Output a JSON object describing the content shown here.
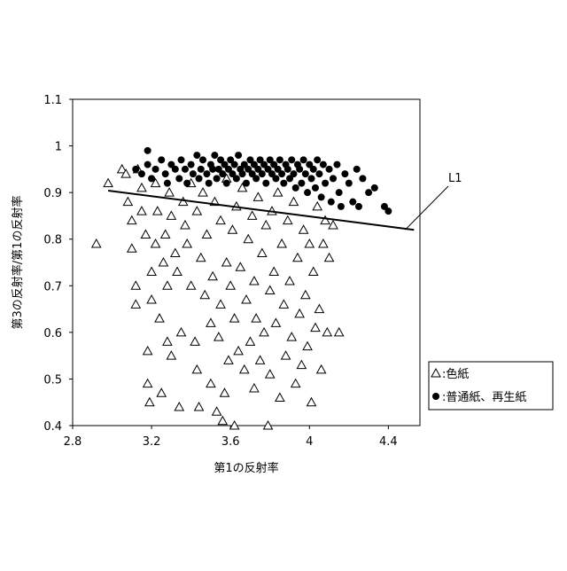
{
  "chart_data": {
    "type": "scatter",
    "xlabel": "第1の反射率",
    "ylabel": "第3の反射率/第1の反射率",
    "xlim": [
      2.8,
      4.56
    ],
    "xticks": [
      2.8,
      3.2,
      3.6,
      4,
      4.4
    ],
    "ylim": [
      0.4,
      1.1
    ],
    "yticks": [
      0.4,
      0.5,
      0.6,
      0.7,
      0.8,
      0.9,
      1,
      1.1
    ],
    "legend": "right",
    "series": [
      {
        "name": ":色紙",
        "marker": "triangle",
        "color": "#000000",
        "x": [
          2.92,
          2.98,
          3.05,
          3.07,
          3.08,
          3.1,
          3.1,
          3.12,
          3.12,
          3.13,
          3.15,
          3.15,
          3.17,
          3.18,
          3.18,
          3.19,
          3.2,
          3.2,
          3.22,
          3.22,
          3.23,
          3.24,
          3.25,
          3.26,
          3.27,
          3.28,
          3.28,
          3.29,
          3.3,
          3.3,
          3.32,
          3.33,
          3.34,
          3.35,
          3.36,
          3.37,
          3.38,
          3.4,
          3.4,
          3.42,
          3.43,
          3.43,
          3.44,
          3.45,
          3.46,
          3.47,
          3.48,
          3.5,
          3.5,
          3.51,
          3.52,
          3.53,
          3.54,
          3.55,
          3.55,
          3.56,
          3.57,
          3.58,
          3.58,
          3.59,
          3.6,
          3.61,
          3.62,
          3.62,
          3.63,
          3.64,
          3.65,
          3.66,
          3.67,
          3.68,
          3.69,
          3.7,
          3.71,
          3.72,
          3.72,
          3.73,
          3.74,
          3.75,
          3.76,
          3.77,
          3.78,
          3.79,
          3.8,
          3.8,
          3.81,
          3.82,
          3.83,
          3.84,
          3.85,
          3.86,
          3.87,
          3.88,
          3.89,
          3.9,
          3.91,
          3.92,
          3.93,
          3.94,
          3.95,
          3.96,
          3.97,
          3.98,
          3.99,
          4.0,
          4.01,
          4.02,
          4.03,
          4.04,
          4.05,
          4.06,
          4.07,
          4.08,
          4.09,
          4.1,
          4.12,
          4.15
        ],
        "values": [
          0.79,
          0.92,
          0.95,
          0.94,
          0.88,
          0.84,
          0.78,
          0.7,
          0.66,
          0.95,
          0.91,
          0.86,
          0.81,
          0.56,
          0.49,
          0.45,
          0.67,
          0.73,
          0.92,
          0.79,
          0.86,
          0.63,
          0.47,
          0.75,
          0.81,
          0.7,
          0.58,
          0.9,
          0.55,
          0.85,
          0.77,
          0.73,
          0.44,
          0.6,
          0.88,
          0.83,
          0.79,
          0.7,
          0.92,
          0.58,
          0.52,
          0.86,
          0.44,
          0.76,
          0.9,
          0.68,
          0.81,
          0.62,
          0.49,
          0.72,
          0.88,
          0.43,
          0.59,
          0.84,
          0.66,
          0.41,
          0.47,
          0.75,
          0.93,
          0.54,
          0.7,
          0.82,
          0.63,
          0.4,
          0.87,
          0.56,
          0.74,
          0.91,
          0.52,
          0.67,
          0.8,
          0.58,
          0.85,
          0.48,
          0.71,
          0.63,
          0.89,
          0.54,
          0.77,
          0.6,
          0.83,
          0.4,
          0.69,
          0.51,
          0.86,
          0.73,
          0.62,
          0.9,
          0.46,
          0.79,
          0.66,
          0.55,
          0.84,
          0.71,
          0.59,
          0.88,
          0.49,
          0.76,
          0.64,
          0.53,
          0.82,
          0.68,
          0.57,
          0.79,
          0.45,
          0.73,
          0.61,
          0.87,
          0.65,
          0.52,
          0.79,
          0.84,
          0.6,
          0.76,
          0.83,
          0.6
        ]
      },
      {
        "name": ":普通紙、再生紙",
        "marker": "circle",
        "color": "#000000",
        "x": [
          3.12,
          3.15,
          3.18,
          3.18,
          3.2,
          3.22,
          3.25,
          3.27,
          3.28,
          3.3,
          3.32,
          3.34,
          3.35,
          3.37,
          3.38,
          3.4,
          3.41,
          3.43,
          3.44,
          3.45,
          3.46,
          3.48,
          3.49,
          3.5,
          3.51,
          3.52,
          3.53,
          3.54,
          3.55,
          3.56,
          3.57,
          3.58,
          3.59,
          3.6,
          3.61,
          3.62,
          3.63,
          3.64,
          3.65,
          3.66,
          3.67,
          3.68,
          3.69,
          3.7,
          3.71,
          3.72,
          3.73,
          3.74,
          3.75,
          3.76,
          3.77,
          3.78,
          3.79,
          3.8,
          3.81,
          3.82,
          3.83,
          3.84,
          3.85,
          3.86,
          3.87,
          3.88,
          3.89,
          3.9,
          3.91,
          3.92,
          3.93,
          3.94,
          3.95,
          3.96,
          3.97,
          3.98,
          3.99,
          4.0,
          4.01,
          4.02,
          4.03,
          4.04,
          4.05,
          4.06,
          4.07,
          4.08,
          4.1,
          4.11,
          4.12,
          4.14,
          4.15,
          4.16,
          4.18,
          4.2,
          4.22,
          4.24,
          4.25,
          4.27,
          4.3,
          4.33,
          4.38,
          4.4
        ],
        "values": [
          0.95,
          0.94,
          0.96,
          0.99,
          0.93,
          0.95,
          0.97,
          0.94,
          0.92,
          0.96,
          0.95,
          0.93,
          0.97,
          0.95,
          0.92,
          0.96,
          0.94,
          0.98,
          0.93,
          0.95,
          0.97,
          0.94,
          0.92,
          0.96,
          0.95,
          0.98,
          0.93,
          0.95,
          0.97,
          0.94,
          0.96,
          0.92,
          0.95,
          0.97,
          0.94,
          0.96,
          0.93,
          0.98,
          0.95,
          0.94,
          0.96,
          0.92,
          0.95,
          0.97,
          0.94,
          0.96,
          0.93,
          0.95,
          0.97,
          0.94,
          0.96,
          0.92,
          0.95,
          0.97,
          0.94,
          0.96,
          0.93,
          0.95,
          0.97,
          0.94,
          0.92,
          0.96,
          0.95,
          0.93,
          0.97,
          0.94,
          0.91,
          0.96,
          0.95,
          0.92,
          0.97,
          0.94,
          0.9,
          0.96,
          0.93,
          0.95,
          0.91,
          0.97,
          0.94,
          0.89,
          0.96,
          0.92,
          0.95,
          0.88,
          0.93,
          0.96,
          0.9,
          0.87,
          0.94,
          0.92,
          0.88,
          0.95,
          0.87,
          0.93,
          0.9,
          0.91,
          0.87,
          0.86
        ]
      }
    ],
    "lines": [
      {
        "name": "L1",
        "x": [
          2.98,
          4.53
        ],
        "values": [
          0.904,
          0.82
        ]
      }
    ]
  }
}
